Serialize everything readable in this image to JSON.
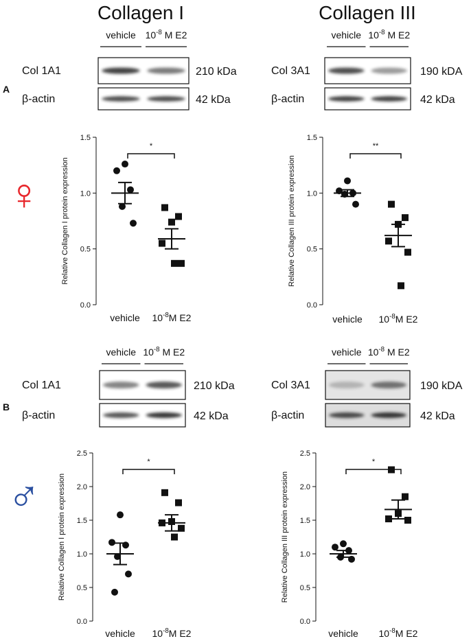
{
  "columns": [
    "Collagen I",
    "Collagen III"
  ],
  "panels": [
    {
      "letter": "A",
      "symbol": "♀",
      "symbol_color": "#e8262b"
    },
    {
      "letter": "B",
      "symbol": "♂",
      "symbol_color": "#2a4fa0"
    }
  ],
  "blots": [
    {
      "lanes": [
        "vehicle",
        {
          "base": "10",
          "exp": "-8",
          "rest": " M E2"
        }
      ],
      "bands": [
        {
          "label": "Col 1A1",
          "kda": "210 kDa"
        },
        {
          "label": "β-actin",
          "kda": "42 kDa"
        }
      ]
    },
    {
      "lanes": [
        "vehicle",
        {
          "base": "10",
          "exp": "-8",
          "rest": " M E2"
        }
      ],
      "bands": [
        {
          "label": "Col 3A1",
          "kda": "190 kDA"
        },
        {
          "label": "β-actin",
          "kda": "42 kDa"
        }
      ]
    },
    {
      "lanes": [
        "vehicle",
        {
          "base": "10",
          "exp": "-8",
          "rest": " M E2"
        }
      ],
      "bands": [
        {
          "label": "Col 1A1",
          "kda": "210 kDa"
        },
        {
          "label": "β-actin",
          "kda": "42 kDa"
        }
      ]
    },
    {
      "lanes": [
        "vehicle",
        {
          "base": "10",
          "exp": "-8",
          "rest": " M E2"
        }
      ],
      "bands": [
        {
          "label": "Col 3A1",
          "kda": "190 kDA"
        },
        {
          "label": "β-actin",
          "kda": "42 kDa"
        }
      ]
    }
  ],
  "chart_data": [
    {
      "type": "dotplot",
      "ylabel": "Relative Collagen I protein expression",
      "categories": [
        "vehicle",
        {
          "base": "10",
          "exp": "-8",
          "rest": "M E2"
        }
      ],
      "groups": [
        {
          "marker": "circle",
          "color": "#111",
          "values": [
            1.26,
            1.2,
            1.03,
            0.88,
            0.73
          ],
          "mean": 1.0,
          "sem": 0.095
        },
        {
          "marker": "square",
          "color": "#111",
          "values": [
            0.87,
            0.79,
            0.74,
            0.55,
            0.37,
            0.37
          ],
          "mean": 0.59,
          "sem": 0.09
        }
      ],
      "significance": "*",
      "ylim": [
        0,
        1.5
      ],
      "yticks": [
        {
          "value": 0,
          "label": "0.0"
        },
        {
          "value": 0.5,
          "label": "0.5"
        },
        {
          "value": 1,
          "label": "1.0"
        },
        {
          "value": 1.5,
          "label": "1.5"
        }
      ]
    },
    {
      "type": "dotplot",
      "ylabel": "Relative Collagen III protein expression",
      "categories": [
        "vehicle",
        {
          "base": "10",
          "exp": "-8",
          "rest": "M E2"
        }
      ],
      "groups": [
        {
          "marker": "circle",
          "color": "#111",
          "values": [
            1.11,
            1.02,
            1.0,
            0.99,
            0.9
          ],
          "mean": 1.0,
          "sem": 0.03
        },
        {
          "marker": "square",
          "color": "#111",
          "values": [
            0.9,
            0.78,
            0.72,
            0.57,
            0.47,
            0.17
          ],
          "mean": 0.62,
          "sem": 0.1
        }
      ],
      "significance": "**",
      "ylim": [
        0,
        1.5
      ],
      "yticks": [
        {
          "value": 0,
          "label": "0.0"
        },
        {
          "value": 0.5,
          "label": "0.5"
        },
        {
          "value": 1,
          "label": "1.0"
        },
        {
          "value": 1.5,
          "label": "1.5"
        }
      ]
    },
    {
      "type": "dotplot",
      "ylabel": "Relative Collagen I protein expression",
      "categories": [
        "vehicle",
        {
          "base": "10",
          "exp": "-8",
          "rest": "M E2"
        }
      ],
      "groups": [
        {
          "marker": "circle",
          "color": "#111",
          "values": [
            1.58,
            1.17,
            1.13,
            0.96,
            0.7,
            0.43
          ],
          "mean": 1.0,
          "sem": 0.16
        },
        {
          "marker": "square",
          "color": "#111",
          "values": [
            1.91,
            1.76,
            1.48,
            1.46,
            1.38,
            1.25
          ],
          "mean": 1.46,
          "sem": 0.12
        }
      ],
      "significance": "*",
      "ylim": [
        0,
        2.5
      ],
      "yticks": [
        {
          "value": 0,
          "label": "0.0"
        },
        {
          "value": 0.5,
          "label": "0.5"
        },
        {
          "value": 1,
          "label": "1.0"
        },
        {
          "value": 1.5,
          "label": "1.5"
        },
        {
          "value": 2,
          "label": "2.0"
        },
        {
          "value": 2.5,
          "label": "2.5"
        }
      ]
    },
    {
      "type": "dotplot",
      "ylabel": "Relative Collagen III protein expression",
      "categories": [
        "vehicle",
        {
          "base": "10",
          "exp": "-8",
          "rest": "M E2"
        }
      ],
      "groups": [
        {
          "marker": "circle",
          "color": "#111",
          "values": [
            1.15,
            1.1,
            1.05,
            0.95,
            0.92
          ],
          "mean": 1.0,
          "sem": 0.05
        },
        {
          "marker": "square",
          "color": "#111",
          "values": [
            2.25,
            1.85,
            1.6,
            1.52,
            1.5
          ],
          "mean": 1.66,
          "sem": 0.14
        }
      ],
      "significance": "*",
      "ylim": [
        0,
        2.5
      ],
      "yticks": [
        {
          "value": 0,
          "label": "0.0"
        },
        {
          "value": 0.5,
          "label": "0.5"
        },
        {
          "value": 1,
          "label": "1.0"
        },
        {
          "value": 1.5,
          "label": "1.5"
        },
        {
          "value": 2,
          "label": "2.0"
        },
        {
          "value": 2.5,
          "label": "2.5"
        }
      ]
    }
  ]
}
